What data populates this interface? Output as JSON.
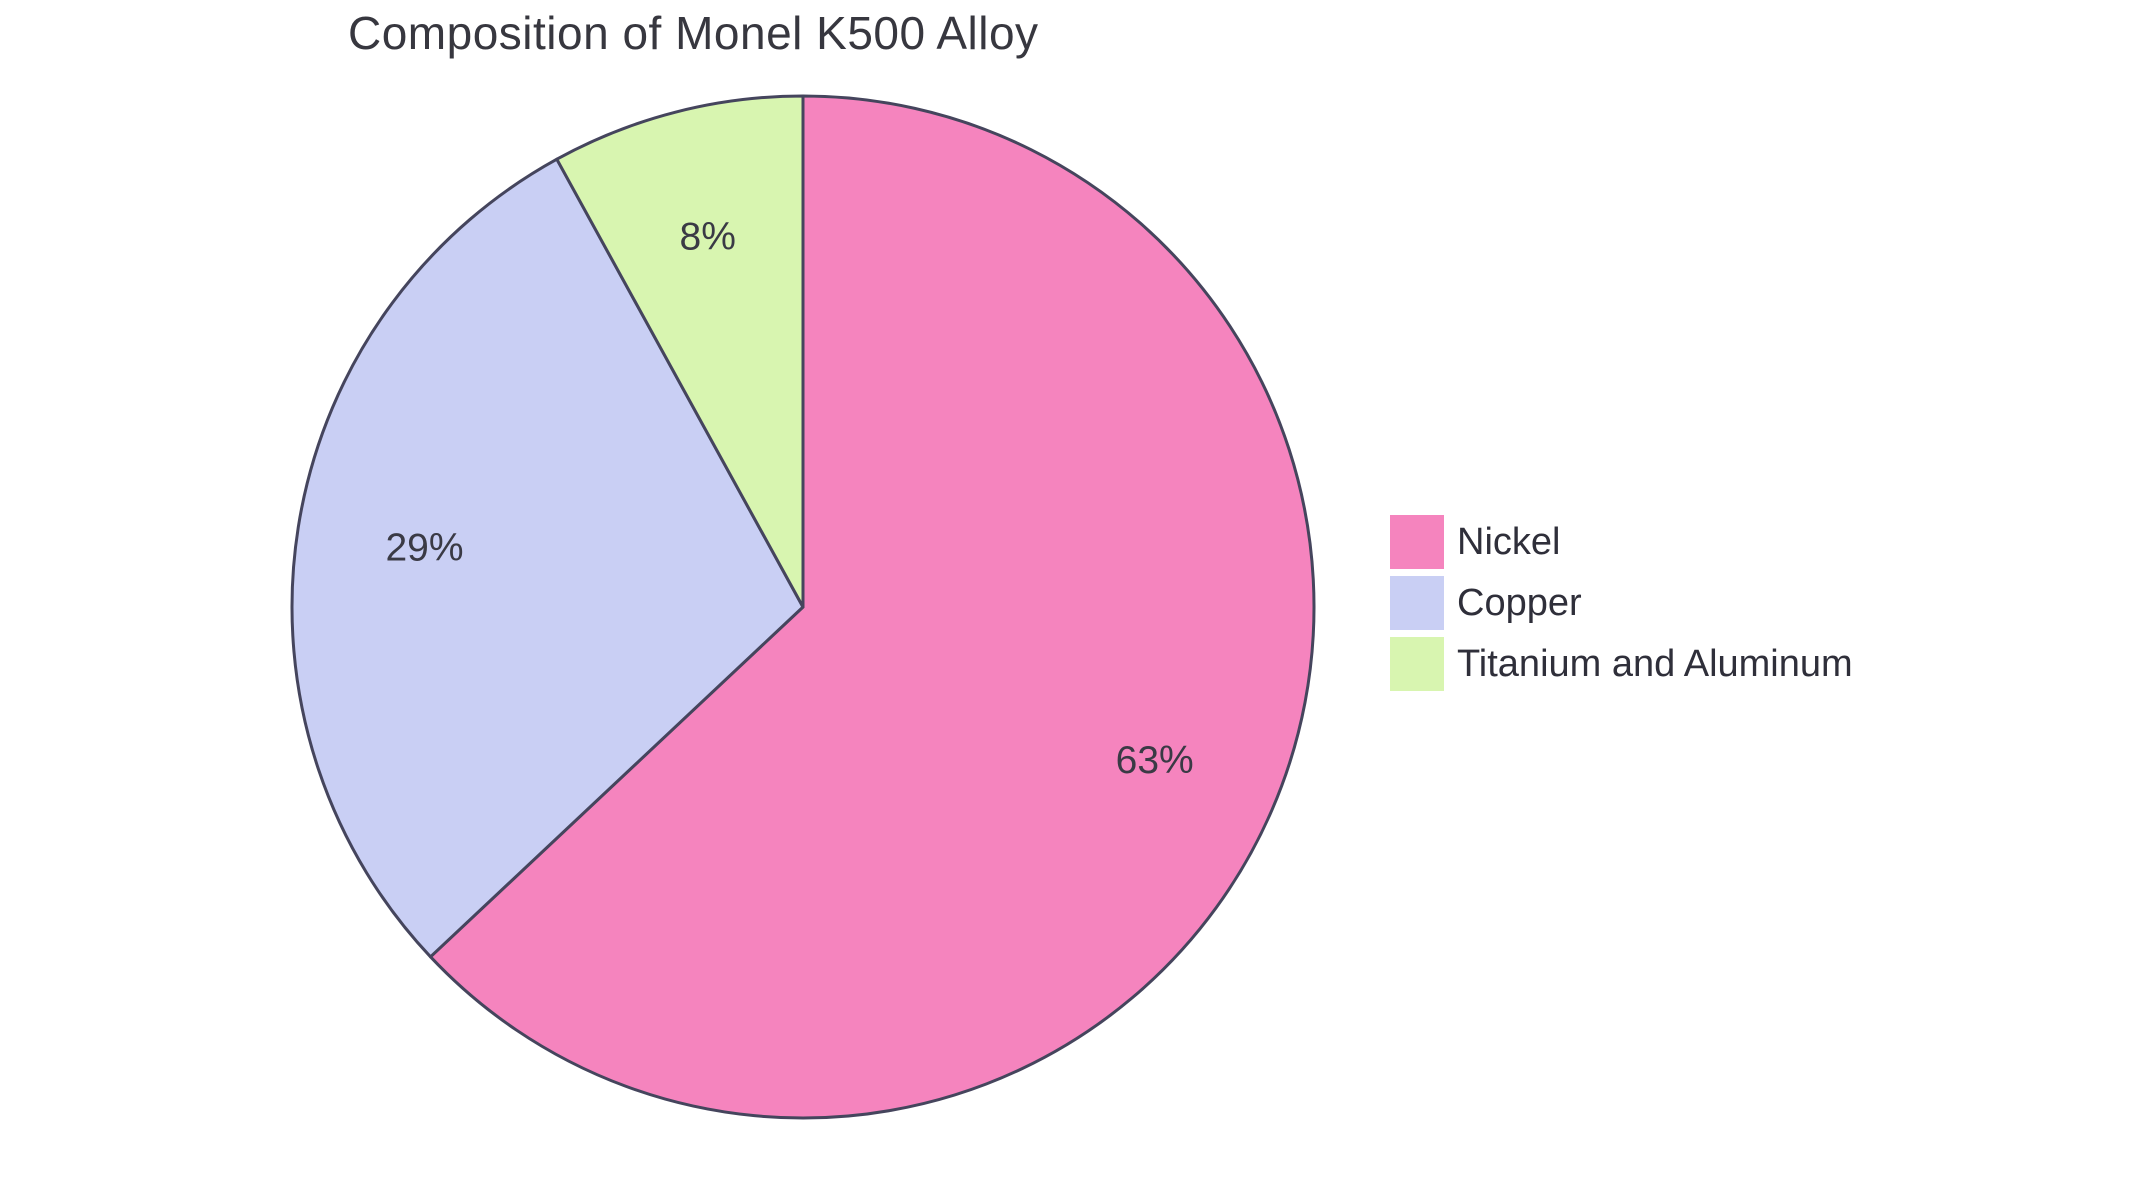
{
  "chart_data": {
    "type": "pie",
    "title": "Composition of Monel K500 Alloy",
    "categories": [
      "Nickel",
      "Copper",
      "Titanium and Aluminum"
    ],
    "values": [
      63,
      29,
      8
    ],
    "labels": [
      "63%",
      "29%",
      "8%"
    ],
    "colors": [
      "#F584BE",
      "#C9CFF4",
      "#D8F5B0"
    ],
    "stroke_color": "#45455D",
    "start_angle": "top",
    "direction": "clockwise",
    "legend_position": "right",
    "label_radius_fraction": 0.75
  }
}
